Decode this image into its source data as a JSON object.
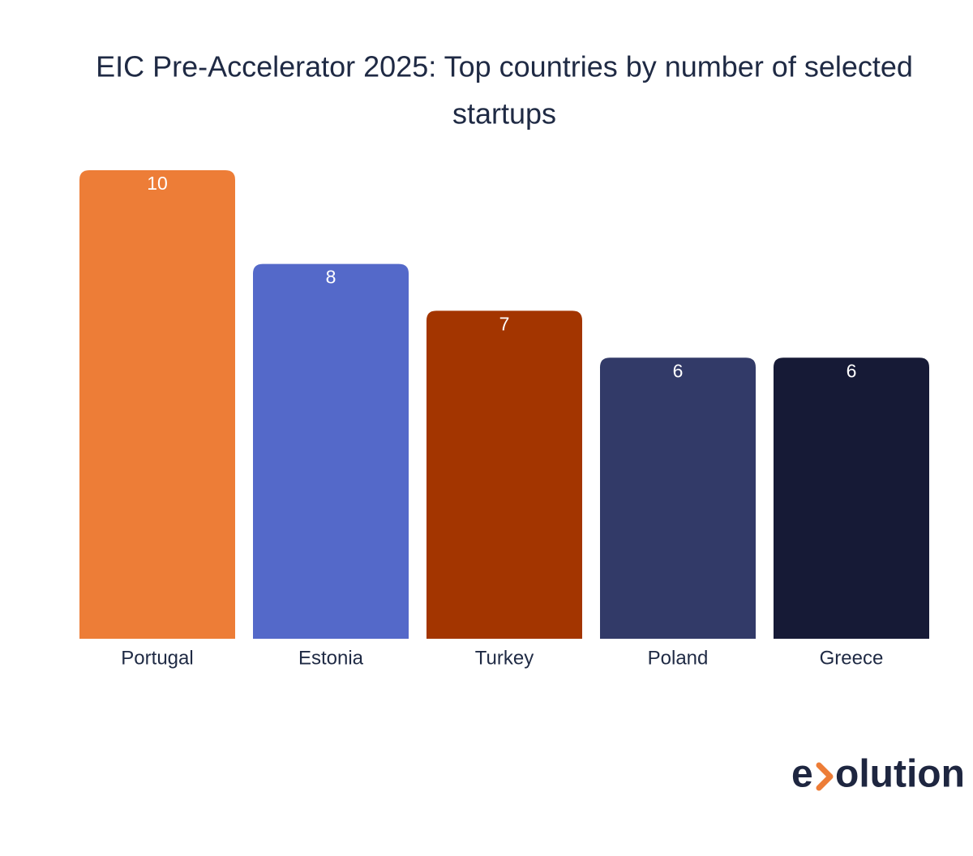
{
  "chart_data": {
    "type": "bar",
    "title": [
      "EIC Pre-Accelerator 2025: Top countries by number of selected",
      "startups"
    ],
    "categories": [
      "Portugal",
      "Estonia",
      "Turkey",
      "Poland",
      "Greece"
    ],
    "values": [
      10,
      8,
      7,
      6,
      6
    ],
    "colors": [
      "#ed7d37",
      "#5469c9",
      "#a33500",
      "#323a68",
      "#161a36"
    ]
  },
  "logo": [
    "e",
    "olution"
  ]
}
